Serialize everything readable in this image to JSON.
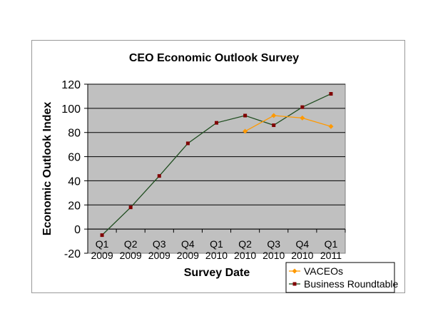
{
  "chart_data": {
    "type": "line",
    "title": "CEO Economic Outlook Survey",
    "xlabel": "Survey Date",
    "ylabel": "Economic Outlook Index",
    "categories": [
      [
        "Q1",
        "2009"
      ],
      [
        "Q2",
        "2009"
      ],
      [
        "Q3",
        "2009"
      ],
      [
        "Q4",
        "2009"
      ],
      [
        "Q1",
        "2010"
      ],
      [
        "Q2",
        "2010"
      ],
      [
        "Q3",
        "2010"
      ],
      [
        "Q4",
        "2010"
      ],
      [
        "Q1",
        "2011"
      ]
    ],
    "ylim": [
      -20,
      120
    ],
    "yticks": [
      -20,
      0,
      20,
      40,
      60,
      80,
      100,
      120
    ],
    "grid": true,
    "legend": "bottom-right",
    "series": [
      {
        "name": "VACEOs",
        "color": "#FF9900",
        "marker": "diamond",
        "values": [
          null,
          null,
          null,
          null,
          null,
          81,
          94,
          92,
          85
        ]
      },
      {
        "name": "Business Roundtable",
        "color": "#800000",
        "line_color": "#1F4D1F",
        "marker": "square",
        "values": [
          -5,
          18,
          44,
          71,
          88,
          94,
          86,
          101,
          112
        ]
      }
    ],
    "colors": {
      "plot_bg": "#C0C0C0",
      "grid": "#000000"
    }
  }
}
